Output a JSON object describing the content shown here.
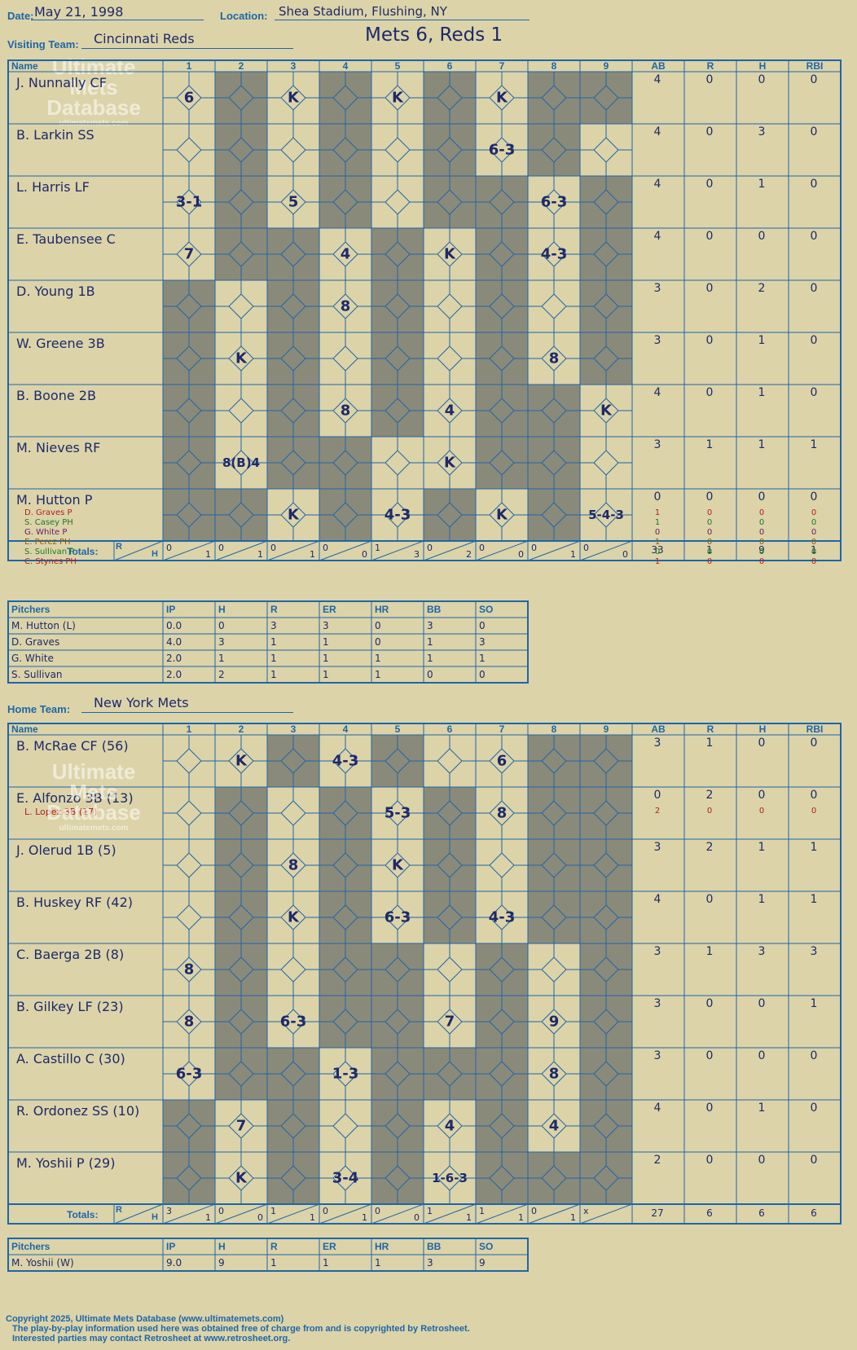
{
  "header": {
    "date_label": "Date:",
    "date": "May 21, 1998",
    "location_label": "Location:",
    "location": "Shea Stadium, Flushing, NY",
    "visiting_label": "Visiting Team:",
    "visiting_team": "Cincinnati Reds",
    "result": "Mets 6, Reds 1",
    "home_label": "Home Team:",
    "home_team": "New York Mets"
  },
  "watermark": {
    "line1": "Ultimate",
    "line2": "Mets",
    "line3": "Database",
    "url": "ultimatemets.com"
  },
  "columns": {
    "name": "Name",
    "innings": [
      "1",
      "2",
      "3",
      "4",
      "5",
      "6",
      "7",
      "8",
      "9"
    ],
    "stats": [
      "AB",
      "R",
      "H",
      "RBI"
    ],
    "totals": "Totals:",
    "r": "R",
    "h": "H"
  },
  "visitors": {
    "players": [
      {
        "name": "J. Nunnally CF",
        "ab": "4",
        "r": "0",
        "h": "0",
        "rbi": "0"
      },
      {
        "name": "B. Larkin SS",
        "ab": "4",
        "r": "0",
        "h": "3",
        "rbi": "0"
      },
      {
        "name": "L. Harris LF",
        "ab": "4",
        "r": "0",
        "h": "1",
        "rbi": "0"
      },
      {
        "name": "E. Taubensee C",
        "ab": "4",
        "r": "0",
        "h": "0",
        "rbi": "0"
      },
      {
        "name": "D. Young 1B",
        "ab": "3",
        "r": "0",
        "h": "2",
        "rbi": "0"
      },
      {
        "name": "W. Greene 3B",
        "ab": "3",
        "r": "0",
        "h": "1",
        "rbi": "0"
      },
      {
        "name": "B. Boone 2B",
        "ab": "4",
        "r": "0",
        "h": "1",
        "rbi": "0"
      },
      {
        "name": "M. Nieves RF",
        "ab": "3",
        "r": "1",
        "h": "1",
        "rbi": "1"
      },
      {
        "name": "M. Hutton P",
        "ab": "0",
        "r": "0",
        "h": "0",
        "rbi": "0"
      }
    ],
    "subs": [
      {
        "name": "D. Graves P",
        "color": "#b02020",
        "ab": "1",
        "r": "0",
        "h": "0",
        "rbi": "0"
      },
      {
        "name": "S. Casey PH",
        "color": "#1a7a2a",
        "ab": "1",
        "r": "0",
        "h": "0",
        "rbi": "0"
      },
      {
        "name": "G. White P",
        "color": "#6a1a6a",
        "ab": "0",
        "r": "0",
        "h": "0",
        "rbi": "0"
      },
      {
        "name": "E. Perez PH",
        "color": "#8a5a10",
        "ab": "1",
        "r": "0",
        "h": "0",
        "rbi": "0"
      },
      {
        "name": "S. Sullivan P",
        "color": "#1a7a2a",
        "ab": "0",
        "r": "0",
        "h": "0",
        "rbi": "0"
      },
      {
        "name": "C. Stynes PH",
        "color": "#b02020",
        "ab": "1",
        "r": "0",
        "h": "0",
        "rbi": "0"
      }
    ],
    "inning_totals": [
      [
        "0",
        "1"
      ],
      [
        "0",
        "1"
      ],
      [
        "0",
        "1"
      ],
      [
        "0",
        "0"
      ],
      [
        "1",
        "3"
      ],
      [
        "0",
        "2"
      ],
      [
        "0",
        "0"
      ],
      [
        "0",
        "1"
      ],
      [
        "0",
        "0"
      ]
    ],
    "totals": {
      "ab": "33",
      "r": "1",
      "h": "9",
      "rbi": "1"
    }
  },
  "visitor_pitchers": {
    "headers": [
      "Pitchers",
      "IP",
      "H",
      "R",
      "ER",
      "HR",
      "BB",
      "SO"
    ],
    "rows": [
      [
        "M. Hutton (L)",
        "0.0",
        "0",
        "3",
        "3",
        "0",
        "3",
        "0"
      ],
      [
        "D. Graves",
        "4.0",
        "3",
        "1",
        "1",
        "0",
        "1",
        "3"
      ],
      [
        "G. White",
        "2.0",
        "1",
        "1",
        "1",
        "1",
        "1",
        "1"
      ],
      [
        "S. Sullivan",
        "2.0",
        "2",
        "1",
        "1",
        "1",
        "0",
        "0"
      ]
    ]
  },
  "home": {
    "players": [
      {
        "name": "B. McRae CF (56)",
        "ab": "3",
        "r": "1",
        "h": "0",
        "rbi": "0"
      },
      {
        "name": "E. Alfonzo 3B (13)",
        "ab": "0",
        "r": "2",
        "h": "0",
        "rbi": "0"
      },
      {
        "name": "J. Olerud 1B (5)",
        "ab": "3",
        "r": "2",
        "h": "1",
        "rbi": "1"
      },
      {
        "name": "B. Huskey RF (42)",
        "ab": "4",
        "r": "0",
        "h": "1",
        "rbi": "1"
      },
      {
        "name": "C. Baerga 2B (8)",
        "ab": "3",
        "r": "1",
        "h": "3",
        "rbi": "3"
      },
      {
        "name": "B. Gilkey LF (23)",
        "ab": "3",
        "r": "0",
        "h": "0",
        "rbi": "1"
      },
      {
        "name": "A. Castillo C (30)",
        "ab": "3",
        "r": "0",
        "h": "0",
        "rbi": "0"
      },
      {
        "name": "R. Ordonez SS (10)",
        "ab": "4",
        "r": "0",
        "h": "1",
        "rbi": "0"
      },
      {
        "name": "M. Yoshii P (29)",
        "ab": "2",
        "r": "0",
        "h": "0",
        "rbi": "0"
      }
    ],
    "subs": [
      {
        "name": "L. Lopez 3B (17)",
        "color": "#b02020",
        "ab": "2",
        "r": "0",
        "h": "0",
        "rbi": "0"
      }
    ],
    "inning_totals": [
      [
        "3",
        "1"
      ],
      [
        "0",
        "0"
      ],
      [
        "1",
        "1"
      ],
      [
        "0",
        "1"
      ],
      [
        "0",
        "0"
      ],
      [
        "1",
        "1"
      ],
      [
        "1",
        "1"
      ],
      [
        "0",
        "1"
      ],
      [
        "x",
        ""
      ]
    ],
    "totals": {
      "ab": "27",
      "r": "6",
      "h": "6",
      "rbi": "6"
    }
  },
  "home_pitchers": {
    "headers": [
      "Pitchers",
      "IP",
      "H",
      "R",
      "ER",
      "HR",
      "BB",
      "SO"
    ],
    "rows": [
      [
        "M. Yoshii (W)",
        "9.0",
        "9",
        "1",
        "1",
        "1",
        "3",
        "9"
      ]
    ]
  },
  "colors": {
    "gray": "#8a8a7a",
    "grid": "#1d67a8",
    "ink": "#1d2a6a",
    "paper": "#dcd3a9",
    "red": "#c02020"
  },
  "footer": {
    "line1": "Copyright 2025, Ultimate Mets Database (www.ultimatemets.com)",
    "line2": "The play-by-play information used here was obtained free of charge from and is copyrighted by Retrosheet.",
    "line3": "Interested parties may contact Retrosheet at www.retrosheet.org."
  },
  "plays": {
    "v": [
      [
        "6",
        "",
        "K",
        "",
        "K",
        "",
        "K",
        "",
        ""
      ],
      [
        "",
        "",
        "",
        "",
        "",
        "",
        "6-3",
        "",
        ""
      ],
      [
        "3-1",
        "",
        "5",
        "",
        "",
        "",
        "",
        "6-3",
        ""
      ],
      [
        "7",
        "",
        "",
        "4",
        "",
        "K",
        "",
        "4-3",
        ""
      ],
      [
        "",
        "",
        "",
        "8",
        "",
        "",
        "",
        "",
        ""
      ],
      [
        "",
        "K",
        "",
        "",
        "",
        "",
        "",
        "8",
        ""
      ],
      [
        "",
        "",
        "",
        "8",
        "",
        "4",
        "",
        "",
        "K"
      ],
      [
        "",
        "8(B)4",
        "",
        "",
        "",
        "K",
        "",
        "",
        ""
      ],
      [
        "",
        "",
        "K",
        "",
        "4-3",
        "",
        "K",
        "",
        "5-4-3"
      ]
    ],
    "h": [
      [
        "",
        "K",
        "",
        "4-3",
        "",
        "",
        "6",
        "",
        ""
      ],
      [
        "",
        "",
        "",
        "",
        "5-3",
        "",
        "8",
        "",
        ""
      ],
      [
        "",
        "",
        "8",
        "",
        "K",
        "",
        "",
        "",
        ""
      ],
      [
        "",
        "",
        "K",
        "",
        "6-3",
        "",
        "4-3",
        "",
        ""
      ],
      [
        "8",
        "",
        "",
        "",
        "",
        "",
        "",
        "",
        ""
      ],
      [
        "8",
        "",
        "6-3",
        "",
        "",
        "7",
        "",
        "9",
        ""
      ],
      [
        "6-3",
        "",
        "",
        "1-3",
        "",
        "",
        "",
        "8",
        ""
      ],
      [
        "",
        "7",
        "",
        "",
        "",
        "4",
        "",
        "4",
        ""
      ],
      [
        "",
        "K",
        "",
        "3-4",
        "",
        "1-6-3",
        "",
        "",
        ""
      ]
    ]
  }
}
